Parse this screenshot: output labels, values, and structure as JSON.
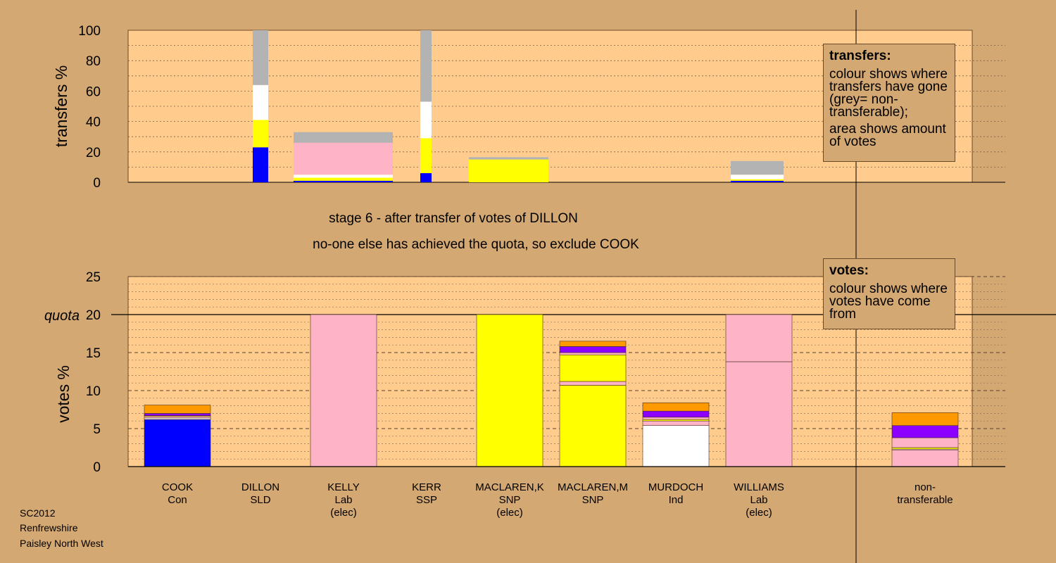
{
  "colors": {
    "background": "#d4a872",
    "plot_fill": "#ffcc8e",
    "Con": "#0000ff",
    "SNP": "#ffff00",
    "Lab": "#ffb3c6",
    "Ind": "#ffffff",
    "SSP": "#ff0000",
    "SLD": "#ff9c00",
    "purple": "#8b00ff",
    "orange": "#ff9900",
    "nontransferable": "#b3b3b3"
  },
  "caption": {
    "stage": "stage 6 - after transfer of votes of DILLON",
    "action": "no-one else has achieved the quota, so exclude COOK"
  },
  "legend_transfers": {
    "title": "transfers:",
    "line1": "colour shows where transfers have gone (grey= non-transferable);",
    "line2": "area shows amount of votes"
  },
  "legend_votes": {
    "title": "votes:",
    "line1": "colour shows where votes have come from"
  },
  "footer": {
    "line1": "SC2012",
    "line2": "Renfrewshire",
    "line3": "Paisley North West"
  },
  "chart_data": [
    {
      "type": "bar",
      "title": "",
      "ylabel": "transfers %",
      "ylim": [
        0,
        100
      ],
      "yticks": [
        0,
        20,
        40,
        60,
        80,
        100
      ],
      "grid": "dotted",
      "legend": "top-right",
      "note": "stacked bars; bar width reflects amount of votes transferred",
      "bars": [
        {
          "label": "DILLON",
          "segments": [
            {
              "color": "Con",
              "value": 23
            },
            {
              "color": "SNP",
              "value": 18
            },
            {
              "color": "Ind",
              "value": 23
            },
            {
              "color": "nontransferable",
              "value": 36
            }
          ]
        },
        {
          "label": "KELLY",
          "segments": [
            {
              "color": "Con",
              "value": 1
            },
            {
              "color": "SNP",
              "value": 2
            },
            {
              "color": "Ind",
              "value": 2
            },
            {
              "color": "Lab",
              "value": 21
            },
            {
              "color": "nontransferable",
              "value": 7
            }
          ]
        },
        {
          "label": "KERR",
          "segments": [
            {
              "color": "Con",
              "value": 6
            },
            {
              "color": "SNP",
              "value": 23
            },
            {
              "color": "Ind",
              "value": 24
            },
            {
              "color": "nontransferable",
              "value": 47
            }
          ]
        },
        {
          "label": "MACLAREN,K",
          "segments": [
            {
              "color": "SNP",
              "value": 15
            },
            {
              "color": "nontransferable",
              "value": 1.5
            }
          ]
        },
        {
          "label": "WILLIAMS",
          "segments": [
            {
              "color": "Con",
              "value": 1
            },
            {
              "color": "SNP",
              "value": 1
            },
            {
              "color": "Ind",
              "value": 3
            },
            {
              "color": "nontransferable",
              "value": 9
            }
          ]
        }
      ]
    },
    {
      "type": "bar",
      "title": "",
      "ylabel": "votes %",
      "ylim": [
        0,
        25
      ],
      "yticks": [
        0,
        5,
        10,
        15,
        20,
        25
      ],
      "quota": 20,
      "quota_label": "quota",
      "grid": "dashed",
      "legend": "top-right",
      "categories": [
        {
          "name": "COOK",
          "party": "Con",
          "elec": ""
        },
        {
          "name": "DILLON",
          "party": "SLD",
          "elec": ""
        },
        {
          "name": "KELLY",
          "party": "Lab",
          "elec": "(elec)"
        },
        {
          "name": "KERR",
          "party": "SSP",
          "elec": ""
        },
        {
          "name": "MACLAREN,K",
          "party": "SNP",
          "elec": "(elec)"
        },
        {
          "name": "MACLAREN,M",
          "party": "SNP",
          "elec": ""
        },
        {
          "name": "MURDOCH",
          "party": "Ind",
          "elec": ""
        },
        {
          "name": "WILLIAMS",
          "party": "Lab",
          "elec": "(elec)"
        },
        {
          "name": "",
          "party": "",
          "elec": ""
        },
        {
          "name": "non-",
          "party": "transferable",
          "elec": ""
        }
      ],
      "stacks": [
        [
          {
            "color": "Con",
            "value": 6.2
          },
          {
            "color": "Ind",
            "value": 0.2
          },
          {
            "color": "Lab",
            "value": 0.2
          },
          {
            "color": "SNP",
            "value": 0.1
          },
          {
            "color": "purple",
            "value": 0.3
          },
          {
            "color": "orange",
            "value": 1.1
          }
        ],
        [],
        [
          {
            "color": "Lab",
            "value": 20
          }
        ],
        [],
        [
          {
            "color": "SNP",
            "value": 20
          }
        ],
        [
          {
            "color": "SNP",
            "value": 10.7
          },
          {
            "color": "Lab",
            "value": 0.5
          },
          {
            "color": "SNP",
            "value": 3.5
          },
          {
            "color": "Lab",
            "value": 0.3
          },
          {
            "color": "purple",
            "value": 0.8
          },
          {
            "color": "orange",
            "value": 0.7
          }
        ],
        [
          {
            "color": "Ind",
            "value": 5.4
          },
          {
            "color": "Lab",
            "value": 0.6
          },
          {
            "color": "SNP",
            "value": 0.2
          },
          {
            "color": "Lab",
            "value": 0.3
          },
          {
            "color": "purple",
            "value": 0.8
          },
          {
            "color": "orange",
            "value": 1.1
          }
        ],
        [
          {
            "color": "Lab",
            "value": 13.8
          },
          {
            "color": "Lab",
            "value": 6.2
          }
        ],
        [],
        [
          {
            "color": "Lab",
            "value": 2.2
          },
          {
            "color": "Ind",
            "value": 0.1
          },
          {
            "color": "SNP",
            "value": 0.2
          },
          {
            "color": "Lab",
            "value": 1.3
          },
          {
            "color": "purple",
            "value": 1.6
          },
          {
            "color": "orange",
            "value": 1.7
          }
        ]
      ]
    }
  ]
}
